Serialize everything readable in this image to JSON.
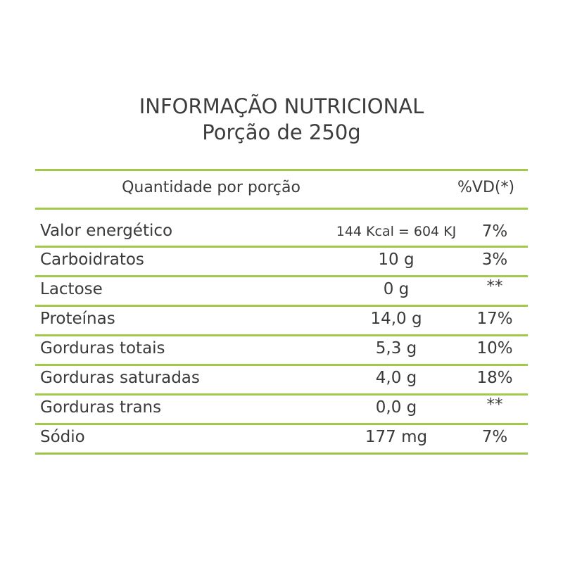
{
  "title": {
    "line1": "INFORMAÇÃO NUTRICIONAL",
    "line2": "Porção de 250g"
  },
  "table": {
    "header": {
      "quantity": "Quantidade por porção",
      "dv": "%VD(*)"
    },
    "rows": [
      {
        "nutrient": "Valor energético",
        "amount": "144 Kcal = 604 KJ",
        "dv": "7%"
      },
      {
        "nutrient": "Carboidratos",
        "amount": "10 g",
        "dv": "3%"
      },
      {
        "nutrient": "Lactose",
        "amount": "0 g",
        "dv": "**"
      },
      {
        "nutrient": "Proteínas",
        "amount": "14,0 g",
        "dv": "17%"
      },
      {
        "nutrient": "Gorduras totais",
        "amount": "5,3 g",
        "dv": "10%"
      },
      {
        "nutrient": "Gorduras saturadas",
        "amount": "4,0 g",
        "dv": "18%"
      },
      {
        "nutrient": "Gorduras trans",
        "amount": "0,0 g",
        "dv": "**"
      },
      {
        "nutrient": "Sódio",
        "amount": "177 mg",
        "dv": "7%"
      }
    ]
  },
  "colors": {
    "rule": "#a2c94a",
    "text": "#3a3a3a"
  }
}
